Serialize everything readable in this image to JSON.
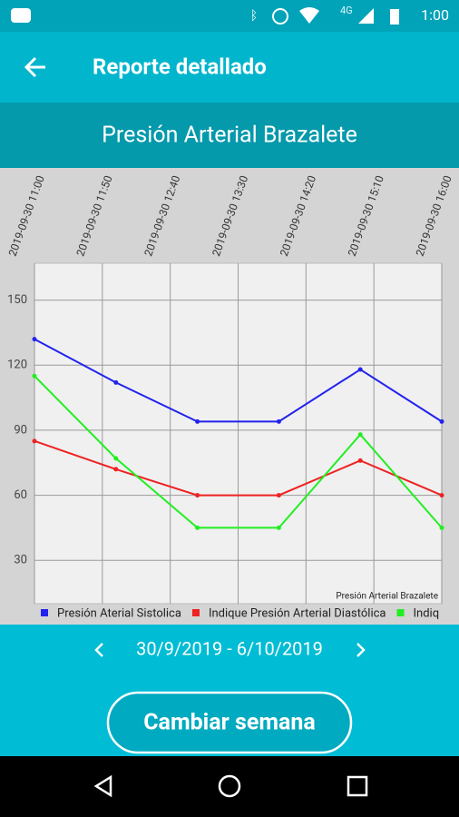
{
  "status_bar": {
    "network": "4G",
    "time": "1:00"
  },
  "app_bar": {
    "title": "Reporte detallado"
  },
  "subtitle": "Presión Arterial Brazalete",
  "chart_data": {
    "type": "line",
    "annotation": "Presión Arterial Brazalete",
    "x": [
      11,
      12,
      13,
      14,
      15,
      16
    ],
    "xlim": [
      11,
      16
    ],
    "xticks": [
      {
        "value": 11,
        "label": "2019-09-30 11:00"
      },
      {
        "value": 11.8333,
        "label": "2019-09-30 11:50"
      },
      {
        "value": 12.6667,
        "label": "2019-09-30 12:40"
      },
      {
        "value": 13.5,
        "label": "2019-09-30 13:30"
      },
      {
        "value": 14.3333,
        "label": "2019-09-30 14:20"
      },
      {
        "value": 15.1667,
        "label": "2019-09-30 15:10"
      },
      {
        "value": 16,
        "label": "2019-09-30 16:00"
      }
    ],
    "ylim": [
      10,
      167
    ],
    "yticks": [
      30,
      60,
      90,
      120,
      150
    ],
    "grid": true,
    "legend": "bottom",
    "series": [
      {
        "name": "Presión Aterial Sistolica",
        "color": "#2222ee",
        "values": [
          132,
          112,
          94,
          94,
          118,
          94
        ]
      },
      {
        "name": "Indique Presión Arterial Diastólica",
        "color": "#ee2222",
        "values": [
          85,
          72,
          60,
          60,
          76,
          60
        ]
      },
      {
        "name": "Indiq",
        "color": "#22ee22",
        "values": [
          115,
          77,
          45,
          45,
          88,
          45
        ]
      }
    ]
  },
  "week_nav": {
    "range": "30/9/2019 - 6/10/2019"
  },
  "button": {
    "label": "Cambiar semana"
  }
}
